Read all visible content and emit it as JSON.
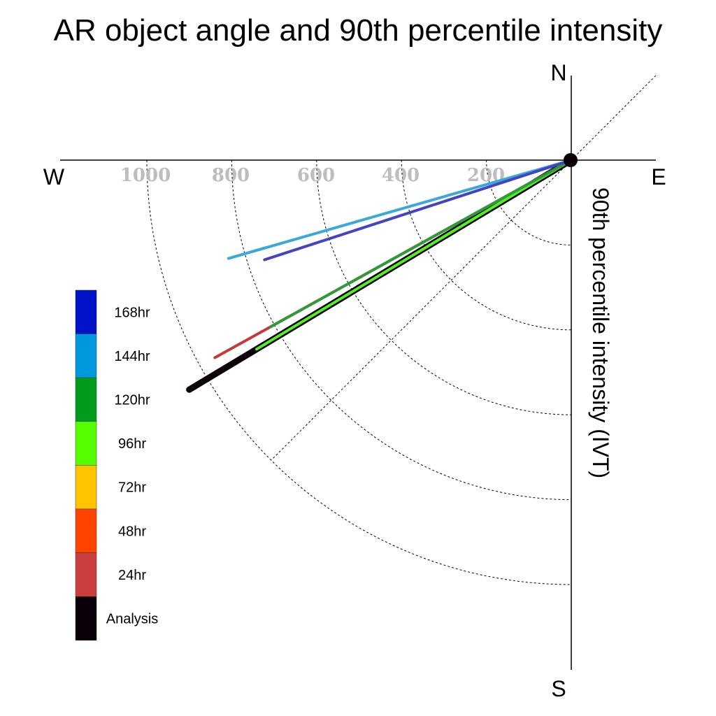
{
  "chart_data": {
    "type": "polar-vector",
    "title": "AR object angle and 90th percentile intensity",
    "ylabel": "90th percentile intensity (IVT)",
    "compass": {
      "north": "N",
      "south": "S",
      "east": "E",
      "west": "W"
    },
    "radial_ticks": [
      "1000",
      "800",
      "600",
      "400",
      "200"
    ],
    "radial_tick_values": [
      1000,
      800,
      600,
      400,
      200
    ],
    "rlim": [
      0,
      1150
    ],
    "grid": true,
    "legend_placement": "left",
    "series": [
      {
        "name": "168hr",
        "color": "#0013c8",
        "draw_color": "#4444c0",
        "angle_deg": 198,
        "intensity": 760
      },
      {
        "name": "144hr",
        "color": "#0099dd",
        "draw_color": "#3aa8d8",
        "angle_deg": 196,
        "intensity": 840
      },
      {
        "name": "120hr",
        "color": "#009c1a",
        "draw_color": "#2e9a3a",
        "angle_deg": 209,
        "intensity": 810
      },
      {
        "name": "96hr",
        "color": "#55ff00",
        "draw_color": "#55ee22",
        "angle_deg": 211,
        "intensity": 865
      },
      {
        "name": "72hr",
        "color": "#ffc400",
        "draw_color": "#ffc400",
        "angle_deg": null,
        "intensity": null
      },
      {
        "name": "48hr",
        "color": "#ff4400",
        "draw_color": "#ff4400",
        "angle_deg": null,
        "intensity": null
      },
      {
        "name": "24hr",
        "color": "#cc3d3d",
        "draw_color": "#c43a3a",
        "angle_deg": 209,
        "intensity": 960
      },
      {
        "name": "Analysis",
        "color": "#0a0008",
        "draw_color": "#0a0008",
        "angle_deg": 211,
        "intensity": 1050
      }
    ]
  }
}
